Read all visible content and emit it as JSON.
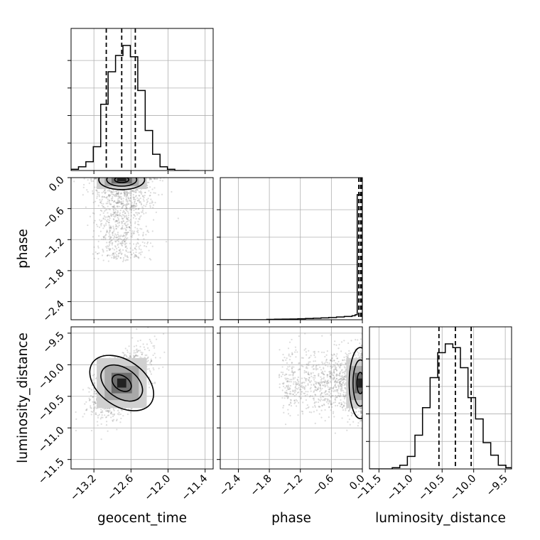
{
  "chart_data": {
    "type": "corner",
    "grid": true,
    "colors": {
      "line": "#000000",
      "grid": "#b0b0b0",
      "scatter": "#808080"
    },
    "parameters": [
      {
        "name": "geocent_time",
        "label": "geocent_time",
        "range": [
          -13.57,
          -11.27
        ],
        "ticks": [
          -13.2,
          -12.6,
          -12.0,
          -11.4
        ],
        "tick_labels": [
          "−13.2",
          "−12.6",
          "−12.0",
          "−11.4"
        ],
        "quantiles": [
          -13.0,
          -12.75,
          -12.53
        ],
        "hist_max": 1.0,
        "hist_bin_edges": [
          -13.57,
          -13.45,
          -13.33,
          -13.21,
          -13.09,
          -12.97,
          -12.85,
          -12.73,
          -12.61,
          -12.49,
          -12.37,
          -12.25,
          -12.13,
          -12.01,
          -11.89,
          -11.77,
          -11.65
        ],
        "hist_counts": [
          0.01,
          0.03,
          0.07,
          0.19,
          0.53,
          0.79,
          0.92,
          1.0,
          0.91,
          0.64,
          0.32,
          0.13,
          0.03,
          0.01,
          0.0,
          0.0
        ]
      },
      {
        "name": "phase",
        "label": "phase",
        "range": [
          -2.75,
          0.0
        ],
        "ticks": [
          -2.4,
          -1.8,
          -1.2,
          -0.6,
          0.0
        ],
        "tick_labels": [
          "−2.4",
          "−1.8",
          "−1.2",
          "−0.6",
          "0.0"
        ],
        "quantiles": [
          -0.07,
          -0.035,
          -0.01
        ],
        "hist_max": 1.0,
        "hist_bin_edges": [
          -2.75,
          -2.6,
          -2.45,
          -2.3,
          -2.15,
          -2.0,
          -1.85,
          -1.7,
          -1.55,
          -1.4,
          -1.25,
          -1.1,
          -0.95,
          -0.8,
          -0.65,
          -0.5,
          -0.35,
          -0.2,
          -0.14,
          -0.1,
          0.0
        ],
        "hist_counts": [
          0.0,
          0.0,
          0.0,
          0.0,
          0.0,
          0.0,
          0.003,
          0.004,
          0.005,
          0.006,
          0.008,
          0.01,
          0.012,
          0.015,
          0.018,
          0.022,
          0.026,
          0.032,
          0.04,
          1.0
        ]
      },
      {
        "name": "luminosity_distance",
        "label": "luminosity_distance",
        "range": [
          -11.65,
          -9.4
        ],
        "ticks": [
          -11.5,
          -11.0,
          -10.5,
          -10.0,
          -9.5
        ],
        "tick_labels": [
          "−11.5",
          "−11.0",
          "−10.5",
          "−10.0",
          "−9.5"
        ],
        "quantiles": [
          -10.55,
          -10.29,
          -10.04
        ],
        "hist_max": 1.0,
        "hist_bin_edges": [
          -11.65,
          -11.53,
          -11.41,
          -11.29,
          -11.17,
          -11.05,
          -10.93,
          -10.81,
          -10.69,
          -10.57,
          -10.45,
          -10.33,
          -10.21,
          -10.09,
          -9.97,
          -9.85,
          -9.73,
          -9.61,
          -9.49,
          -9.4
        ],
        "hist_counts": [
          0.0,
          0.0,
          0.0,
          0.01,
          0.03,
          0.1,
          0.27,
          0.49,
          0.73,
          0.93,
          1.0,
          0.97,
          0.81,
          0.57,
          0.4,
          0.21,
          0.11,
          0.03,
          0.01
        ]
      }
    ]
  }
}
